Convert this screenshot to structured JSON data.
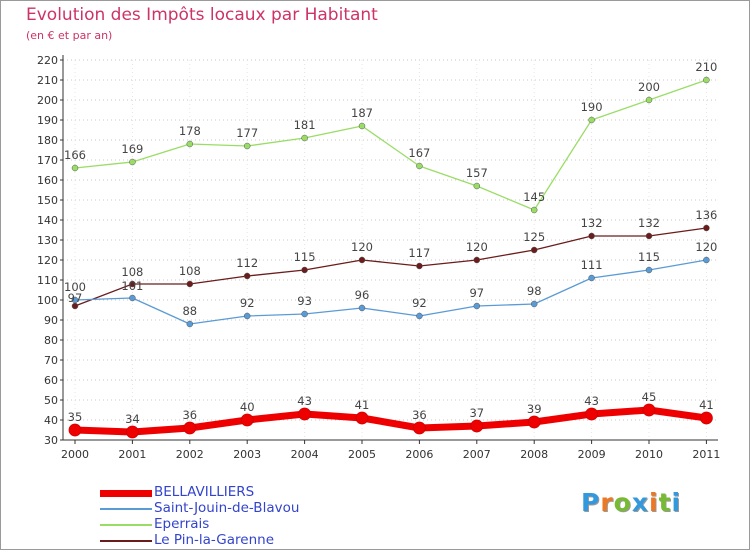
{
  "chart_data": {
    "type": "line",
    "title": "Evolution des Impôts locaux par Habitant",
    "subtitle": "(en € et par an)",
    "x": [
      "2000",
      "2001",
      "2002",
      "2003",
      "2004",
      "2005",
      "2006",
      "2007",
      "2008",
      "2009",
      "2010",
      "2011"
    ],
    "ylim": [
      30,
      220
    ],
    "yticks": [
      30,
      40,
      50,
      60,
      70,
      80,
      90,
      100,
      110,
      120,
      130,
      140,
      150,
      160,
      170,
      180,
      190,
      200,
      210,
      220
    ],
    "grid": "horizontal-dotted",
    "legend_position": "bottom-left",
    "series": [
      {
        "name": "BELLAVILLIERS",
        "color": "#ee0000",
        "values": [
          35,
          34,
          36,
          40,
          43,
          41,
          36,
          37,
          39,
          43,
          45,
          41
        ]
      },
      {
        "name": "Saint-Jouin-de-Blavou",
        "color": "#5b9bd5",
        "values": [
          100,
          101,
          88,
          92,
          93,
          96,
          92,
          97,
          98,
          111,
          115,
          120
        ]
      },
      {
        "name": "Eperrais",
        "color": "#99dd66",
        "values": [
          166,
          169,
          178,
          177,
          181,
          187,
          167,
          157,
          145,
          190,
          200,
          210
        ]
      },
      {
        "name": "Le Pin-la-Garenne",
        "color": "#6b1c1c",
        "values": [
          97,
          108,
          108,
          112,
          115,
          120,
          117,
          120,
          125,
          132,
          132,
          136
        ]
      }
    ]
  },
  "logo": {
    "letters": [
      "P",
      "r",
      "o",
      "x",
      "i",
      "t",
      "i"
    ],
    "colors": [
      "#3399dd",
      "#ee7722",
      "#77bb33",
      "#3399dd",
      "#ee7722",
      "#77bb33",
      "#3399dd"
    ]
  }
}
